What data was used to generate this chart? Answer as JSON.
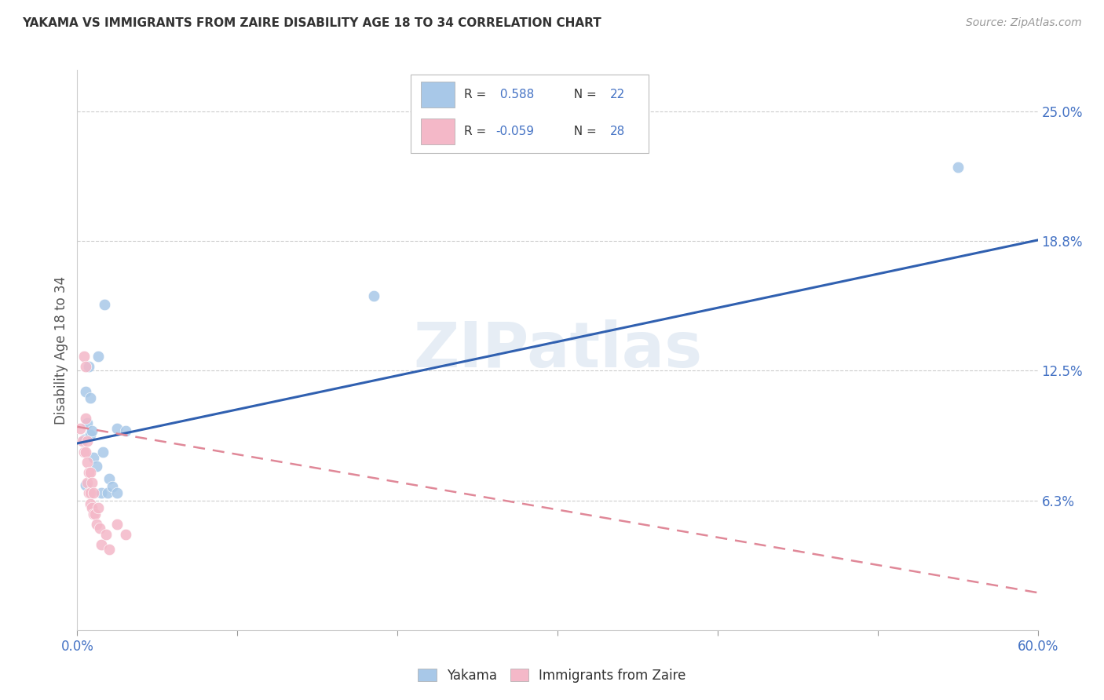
{
  "title": "YAKAMA VS IMMIGRANTS FROM ZAIRE DISABILITY AGE 18 TO 34 CORRELATION CHART",
  "source": "Source: ZipAtlas.com",
  "ylabel": "Disability Age 18 to 34",
  "xlim": [
    0.0,
    0.6
  ],
  "ylim": [
    0.0,
    0.27
  ],
  "ytick_values": [
    0.0625,
    0.125,
    0.1875,
    0.25
  ],
  "ytick_labels": [
    "6.3%",
    "12.5%",
    "18.8%",
    "25.0%"
  ],
  "watermark": "ZIPatlas",
  "blue_color": "#a8c8e8",
  "pink_color": "#f4b8c8",
  "blue_line_color": "#3060b0",
  "pink_line_color": "#e08898",
  "text_blue": "#4472c4",
  "background_color": "#ffffff",
  "grid_color": "#cccccc",
  "yakama_x": [
    0.004,
    0.005,
    0.005,
    0.006,
    0.007,
    0.008,
    0.008,
    0.009,
    0.01,
    0.012,
    0.013,
    0.015,
    0.016,
    0.017,
    0.019,
    0.02,
    0.022,
    0.025,
    0.025,
    0.03,
    0.185,
    0.55
  ],
  "yakama_y": [
    0.092,
    0.115,
    0.07,
    0.1,
    0.127,
    0.112,
    0.094,
    0.096,
    0.083,
    0.079,
    0.132,
    0.066,
    0.086,
    0.157,
    0.066,
    0.073,
    0.069,
    0.097,
    0.066,
    0.096,
    0.161,
    0.223
  ],
  "zaire_x": [
    0.002,
    0.003,
    0.004,
    0.004,
    0.005,
    0.005,
    0.005,
    0.006,
    0.006,
    0.006,
    0.007,
    0.007,
    0.008,
    0.008,
    0.008,
    0.009,
    0.009,
    0.01,
    0.01,
    0.011,
    0.012,
    0.013,
    0.014,
    0.015,
    0.018,
    0.02,
    0.025,
    0.03
  ],
  "zaire_y": [
    0.097,
    0.091,
    0.086,
    0.132,
    0.127,
    0.102,
    0.086,
    0.081,
    0.071,
    0.091,
    0.076,
    0.066,
    0.076,
    0.066,
    0.061,
    0.059,
    0.071,
    0.056,
    0.066,
    0.056,
    0.051,
    0.059,
    0.049,
    0.041,
    0.046,
    0.039,
    0.051,
    0.046
  ],
  "blue_line_x": [
    0.0,
    0.6
  ],
  "blue_line_y": [
    0.09,
    0.188
  ],
  "pink_line_x": [
    0.0,
    0.6
  ],
  "pink_line_y": [
    0.098,
    0.018
  ],
  "legend_r1_label": "R =  0.588   N = 22",
  "legend_r2_label": "R = -0.059   N = 28",
  "bottom_legend_labels": [
    "Yakama",
    "Immigrants from Zaire"
  ]
}
